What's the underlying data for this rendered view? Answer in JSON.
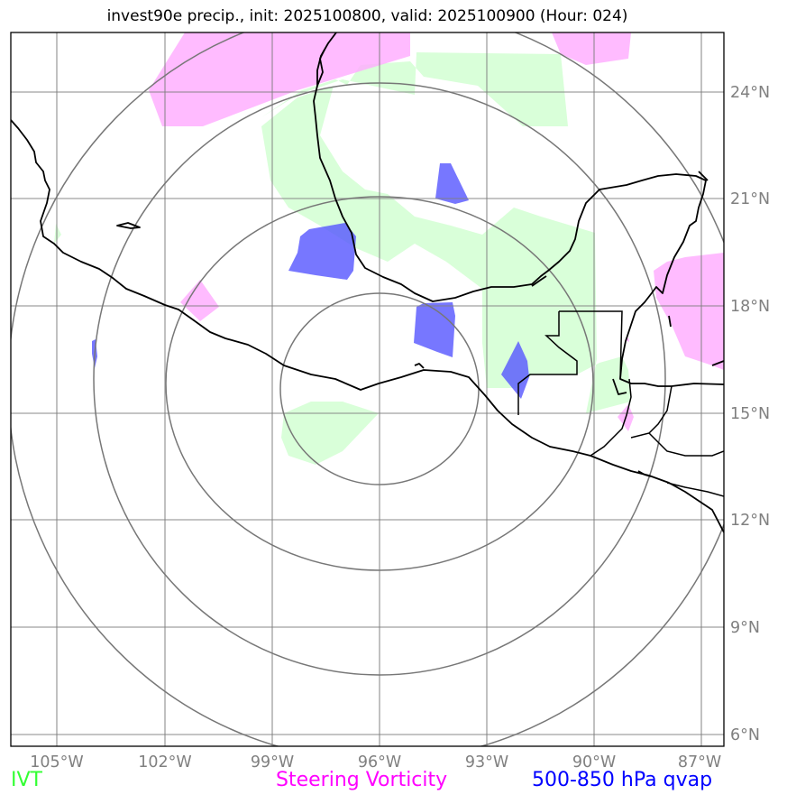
{
  "title": "invest90e precip., init: 2025100800, valid: 2025100900 (Hour: 024)",
  "axes": {
    "lon_labels": [
      "105°W",
      "102°W",
      "99°W",
      "96°W",
      "93°W",
      "90°W",
      "87°W"
    ],
    "lat_labels": [
      "24°N",
      "21°N",
      "18°N",
      "15°N",
      "12°N",
      "9°N",
      "6°N"
    ],
    "gridline_color": "#808080"
  },
  "range_rings": {
    "count": 4,
    "color": "#808080"
  },
  "overlays": [
    {
      "name": "IVT",
      "color": "#ccffcc",
      "legend_color": "#33ff33"
    },
    {
      "name": "Steering Vorticity",
      "color": "#ffaaff",
      "legend_color": "#ff00ff"
    },
    {
      "name": "500-850 hPa qvap",
      "color": "#5555ff",
      "legend_color": "#0000ff"
    }
  ],
  "legend": {
    "ivt": "IVT",
    "vorticity": "Steering Vorticity",
    "qvap": "500-850 hPa qvap"
  }
}
